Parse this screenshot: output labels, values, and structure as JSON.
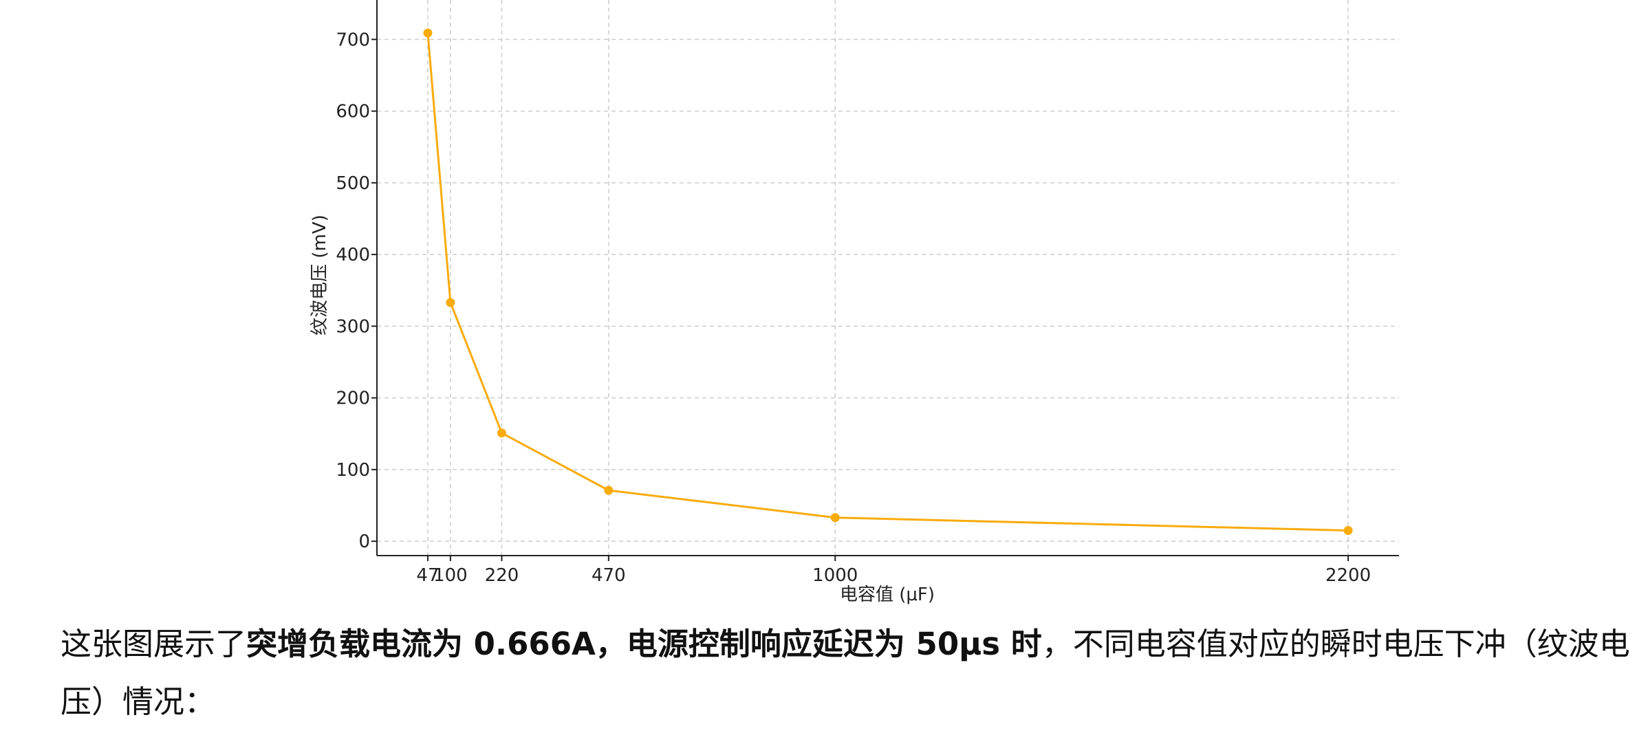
{
  "chart_data": {
    "type": "line",
    "xlabel": "电容值 (μF)",
    "ylabel": "纹波电压 (mV)",
    "x": [
      47,
      100,
      220,
      470,
      1000,
      2200
    ],
    "series": [
      {
        "values": [
          709,
          333,
          151,
          71,
          33,
          15
        ]
      }
    ],
    "x_ticks": [
      47,
      100,
      220,
      470,
      1000,
      2200
    ],
    "y_ticks": [
      0,
      100,
      200,
      300,
      400,
      500,
      600,
      700
    ],
    "xlim": [
      -72,
      2319
    ],
    "ylim": [
      -20,
      755
    ],
    "grid": true,
    "colors": {
      "line": "#f9ab0c",
      "grid": "#cccccc",
      "axis": "#222222"
    }
  },
  "caption": {
    "prefix": "这张图展示了",
    "bold": "突增负载电流为 0.666A，电源控制响应延迟为 50μs 时",
    "suffix": "，不同电容值对应的瞬时电压下冲（纹波电压）情况："
  }
}
